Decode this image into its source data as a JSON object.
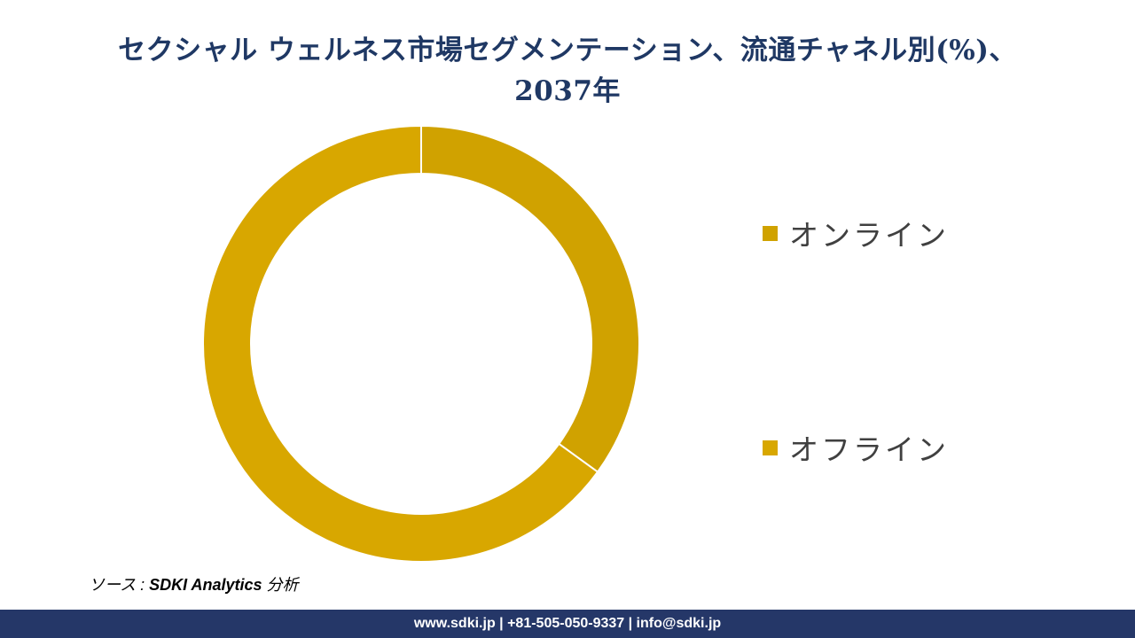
{
  "title_line1": "セクシャル ウェルネス市場セグメンテーション、流通チャネル別(%)、",
  "title_line2": "2037年",
  "chart_data": {
    "type": "pie",
    "title": "セクシャル ウェルネス市場セグメンテーション、流通チャネル別(%)、 2037年",
    "donut": true,
    "slices": [
      {
        "label": "オンライン",
        "value": 35,
        "color": "#d0a200"
      },
      {
        "label": "オフライン",
        "value": 65,
        "color": "#d8a700"
      }
    ],
    "legend_position": "right"
  },
  "source": {
    "prefix": "ソース : ",
    "name": "SDKI Analytics",
    "suffix": " 分析"
  },
  "footer_text": "www.sdki.jp | +81-505-050-9337 | info@sdki.jp"
}
